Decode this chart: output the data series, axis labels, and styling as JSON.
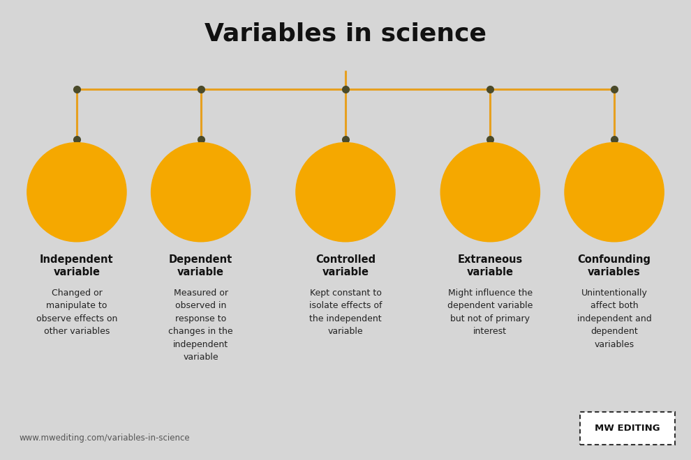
{
  "title": "Variables in science",
  "background_color": "#d6d6d6",
  "title_fontsize": 26,
  "title_fontweight": "bold",
  "title_color": "#111111",
  "orange_color": "#f5a800",
  "line_color": "#e6a020",
  "dot_color": "#4a4a2a",
  "items": [
    {
      "title": "Independent\nvariable",
      "description": "Changed or\nmanipulate to\nobserve effects on\nother variables"
    },
    {
      "title": "Dependent\nvariable",
      "description": "Measured or\nobserved in\nresponse to\nchanges in the\nindependent\nvariable"
    },
    {
      "title": "Controlled\nvariable",
      "description": "Kept constant to\nisolate effects of\nthe independent\nvariable"
    },
    {
      "title": "Extraneous\nvariable",
      "description": "Might influence the\ndependent variable\nbut not of primary\ninterest"
    },
    {
      "title": "Confounding\nvariables",
      "description": "Unintentionally\naffect both\nindependent and\ndependent\nvariables"
    }
  ],
  "footer_url": "www.mwediting.com/variables-in-science",
  "footer_brand": "MW EDITING"
}
